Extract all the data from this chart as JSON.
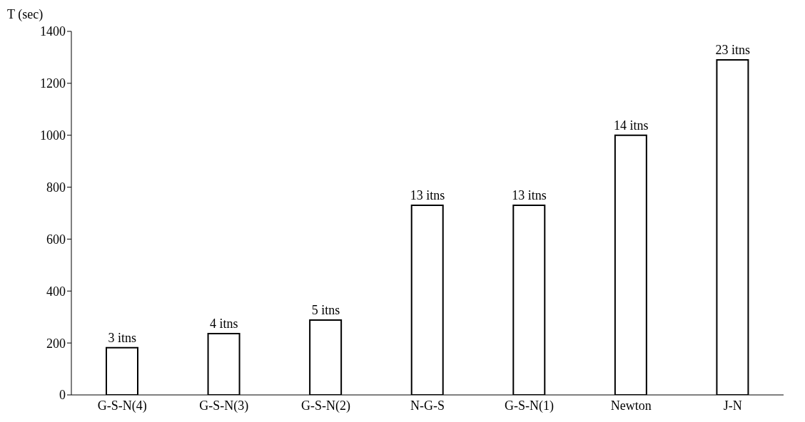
{
  "chart_data": {
    "type": "bar",
    "ylabel": "T (sec)",
    "categories": [
      "G-S-N(4)",
      "G-S-N(3)",
      "G-S-N(2)",
      "N-G-S",
      "G-S-N(1)",
      "Newton",
      "J-N"
    ],
    "values": [
      182,
      236,
      288,
      730,
      730,
      1000,
      1290
    ],
    "annotations": [
      {
        "text": "3 itns",
        "x": "G-S-N(4)",
        "y": 182
      },
      {
        "text": "4 itns",
        "x": "G-S-N(3)",
        "y": 236
      },
      {
        "text": "5 itns",
        "x": "G-S-N(2)",
        "y": 288
      },
      {
        "text": "13 itns",
        "x": "N-G-S",
        "y": 730
      },
      {
        "text": "13 itns",
        "x": "G-S-N(1)",
        "y": 730
      },
      {
        "text": "14 itns",
        "x": "Newton",
        "y": 1000
      },
      {
        "text": "23 itns",
        "x": "J-N",
        "y": 1290
      }
    ],
    "color": "#ffffff",
    "ylim": [
      0,
      1400
    ],
    "yticks": [
      0,
      200,
      400,
      600,
      800,
      1000,
      1200,
      1400
    ]
  }
}
